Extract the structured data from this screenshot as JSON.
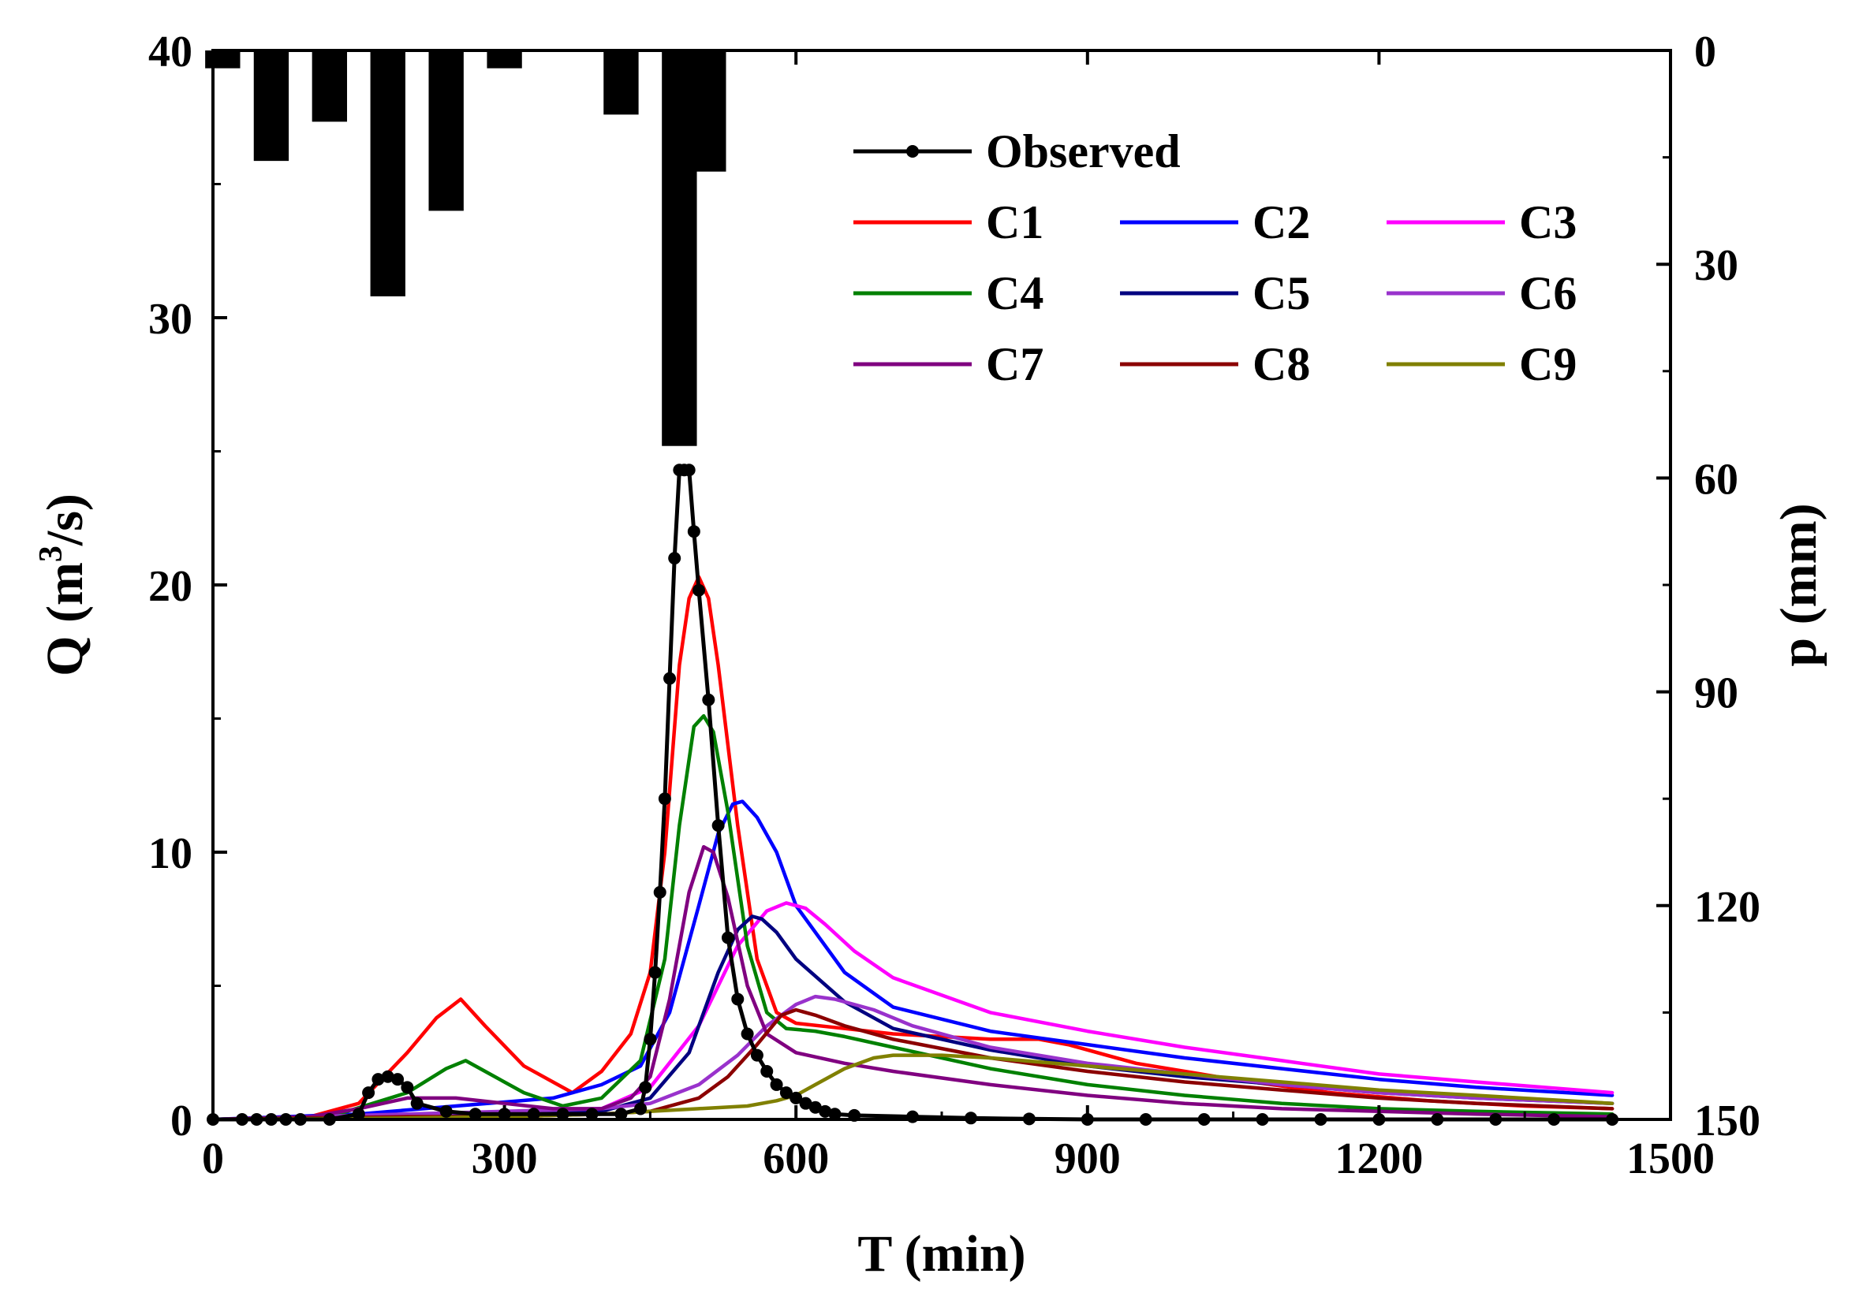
{
  "chart_data": {
    "type": "line",
    "title": "",
    "xlabel": "T (min)",
    "ylabel_left": "Q (m3/s)",
    "ylabel_left_parts": {
      "base": "Q (m",
      "sup": "3",
      "tail": "/s)"
    },
    "ylabel_right": "p (mm)",
    "xlim": [
      0,
      1500
    ],
    "ylim_left": [
      0,
      40
    ],
    "ylim_right": [
      0,
      150
    ],
    "right_axis_inverted": true,
    "x_ticks": [
      0,
      300,
      600,
      900,
      1200,
      1500
    ],
    "x_tick_labels": [
      "0",
      "300",
      "600",
      "900",
      "1200",
      "1500"
    ],
    "y_left_ticks": [
      0,
      10,
      20,
      30,
      40
    ],
    "y_left_tick_labels": [
      "0",
      "10",
      "20",
      "30",
      "40"
    ],
    "y_right_ticks": [
      0,
      30,
      60,
      90,
      120,
      150
    ],
    "y_right_tick_labels": [
      "0",
      "30",
      "60",
      "90",
      "120",
      "150"
    ],
    "legend_position": "top-right",
    "precipitation": {
      "name": "p (mm)",
      "color": "#000000",
      "bar_width_min": 36,
      "bars": [
        {
          "t": 10,
          "p": 2.5
        },
        {
          "t": 60,
          "p": 15.5
        },
        {
          "t": 120,
          "p": 10
        },
        {
          "t": 180,
          "p": 34.5
        },
        {
          "t": 240,
          "p": 22.5
        },
        {
          "t": 300,
          "p": 2.5
        },
        {
          "t": 420,
          "p": 9
        },
        {
          "t": 480,
          "p": 55.5
        },
        {
          "t": 510,
          "p": 17
        }
      ]
    },
    "series": [
      {
        "name": "Observed",
        "color": "#000000",
        "markers": true,
        "x": [
          0,
          30,
          45,
          60,
          75,
          90,
          120,
          150,
          160,
          170,
          180,
          190,
          200,
          210,
          240,
          270,
          300,
          330,
          360,
          390,
          420,
          440,
          445,
          450,
          455,
          460,
          465,
          470,
          475,
          480,
          485,
          490,
          495,
          500,
          510,
          520,
          530,
          540,
          550,
          560,
          570,
          580,
          590,
          600,
          610,
          620,
          630,
          640,
          660,
          720,
          780,
          840,
          900,
          960,
          1020,
          1080,
          1140,
          1200,
          1260,
          1320,
          1380,
          1440
        ],
        "y": [
          0,
          0,
          0,
          0,
          0,
          0,
          0,
          0.2,
          1.0,
          1.5,
          1.6,
          1.5,
          1.2,
          0.6,
          0.3,
          0.2,
          0.2,
          0.2,
          0.2,
          0.2,
          0.2,
          0.4,
          1.2,
          3.0,
          5.5,
          8.5,
          12.0,
          16.5,
          21.0,
          24.3,
          24.3,
          24.3,
          22.0,
          19.8,
          15.7,
          11.0,
          6.8,
          4.5,
          3.2,
          2.4,
          1.8,
          1.3,
          1.0,
          0.8,
          0.6,
          0.45,
          0.3,
          0.2,
          0.15,
          0.1,
          0.05,
          0.02,
          0,
          0,
          0,
          0,
          0,
          0,
          0,
          0,
          0,
          0
        ]
      },
      {
        "name": "C1",
        "color": "#ff0000",
        "x": [
          0,
          100,
          150,
          200,
          230,
          255,
          280,
          320,
          370,
          400,
          430,
          450,
          465,
          480,
          490,
          500,
          510,
          520,
          540,
          560,
          580,
          600,
          650,
          700,
          800,
          850,
          880,
          950,
          1050,
          1150,
          1250,
          1350,
          1440
        ],
        "y": [
          0,
          0.1,
          0.6,
          2.5,
          3.8,
          4.5,
          3.5,
          2.0,
          1.0,
          1.8,
          3.2,
          5.5,
          10.0,
          17.0,
          19.5,
          20.3,
          19.5,
          17.0,
          11.0,
          6.0,
          4.0,
          3.6,
          3.4,
          3.2,
          3.0,
          3.0,
          2.8,
          2.1,
          1.5,
          1.0,
          0.7,
          0.5,
          0.4
        ]
      },
      {
        "name": "C2",
        "color": "#0000ff",
        "x": [
          0,
          150,
          250,
          350,
          400,
          440,
          470,
          500,
          520,
          535,
          545,
          560,
          580,
          600,
          650,
          700,
          800,
          900,
          1000,
          1100,
          1200,
          1300,
          1440
        ],
        "y": [
          0,
          0.2,
          0.5,
          0.8,
          1.3,
          2.0,
          4.0,
          8.0,
          10.7,
          11.8,
          11.9,
          11.3,
          10.0,
          8.0,
          5.5,
          4.2,
          3.3,
          2.8,
          2.3,
          1.9,
          1.5,
          1.2,
          0.9
        ]
      },
      {
        "name": "C3",
        "color": "#ff00ff",
        "x": [
          0,
          200,
          300,
          400,
          450,
          500,
          540,
          570,
          590,
          610,
          630,
          660,
          700,
          800,
          900,
          1000,
          1100,
          1200,
          1300,
          1440
        ],
        "y": [
          0,
          0.1,
          0.2,
          0.4,
          1.2,
          3.5,
          6.5,
          7.8,
          8.1,
          7.9,
          7.3,
          6.3,
          5.3,
          4.0,
          3.3,
          2.7,
          2.2,
          1.7,
          1.4,
          1.0
        ]
      },
      {
        "name": "C4",
        "color": "#008000",
        "x": [
          0,
          120,
          200,
          240,
          260,
          280,
          320,
          360,
          400,
          440,
          465,
          480,
          495,
          505,
          515,
          530,
          550,
          570,
          590,
          620,
          650,
          700,
          800,
          900,
          1000,
          1100,
          1200,
          1300,
          1440
        ],
        "y": [
          0,
          0.1,
          1.0,
          1.9,
          2.2,
          1.8,
          1.0,
          0.5,
          0.8,
          2.2,
          6.0,
          11.0,
          14.7,
          15.1,
          14.5,
          11.5,
          6.5,
          4.0,
          3.4,
          3.3,
          3.1,
          2.7,
          1.9,
          1.3,
          0.9,
          0.6,
          0.4,
          0.3,
          0.2
        ]
      },
      {
        "name": "C5",
        "color": "#000080",
        "x": [
          0,
          200,
          300,
          400,
          450,
          490,
          520,
          540,
          555,
          565,
          580,
          600,
          650,
          700,
          800,
          900,
          1000,
          1100,
          1200,
          1300,
          1440
        ],
        "y": [
          0,
          0.1,
          0.2,
          0.3,
          0.8,
          2.5,
          5.5,
          7.1,
          7.6,
          7.5,
          7.0,
          6.0,
          4.4,
          3.4,
          2.6,
          2.0,
          1.6,
          1.3,
          1.0,
          0.8,
          0.6
        ]
      },
      {
        "name": "C6",
        "color": "#9932cc",
        "x": [
          0,
          200,
          300,
          400,
          450,
          500,
          540,
          570,
          600,
          620,
          640,
          680,
          720,
          800,
          900,
          1000,
          1100,
          1200,
          1300,
          1440
        ],
        "y": [
          0,
          0.2,
          0.3,
          0.4,
          0.6,
          1.3,
          2.4,
          3.5,
          4.3,
          4.6,
          4.5,
          4.1,
          3.5,
          2.7,
          2.1,
          1.7,
          1.3,
          1.0,
          0.8,
          0.6
        ]
      },
      {
        "name": "C7",
        "color": "#800080",
        "x": [
          0,
          100,
          150,
          200,
          250,
          300,
          350,
          400,
          430,
          450,
          470,
          490,
          505,
          515,
          530,
          550,
          570,
          600,
          650,
          700,
          800,
          900,
          1000,
          1100,
          1200,
          1300,
          1440
        ],
        "y": [
          0,
          0.1,
          0.4,
          0.8,
          0.8,
          0.6,
          0.4,
          0.4,
          0.8,
          1.6,
          4.5,
          8.5,
          10.2,
          10.0,
          8.3,
          5.0,
          3.2,
          2.5,
          2.1,
          1.8,
          1.3,
          0.9,
          0.6,
          0.4,
          0.3,
          0.2,
          0.1
        ]
      },
      {
        "name": "C8",
        "color": "#8b0000",
        "x": [
          0,
          200,
          300,
          400,
          450,
          500,
          530,
          560,
          585,
          600,
          620,
          650,
          700,
          800,
          900,
          1000,
          1100,
          1200,
          1300,
          1440
        ],
        "y": [
          0,
          0.1,
          0.1,
          0.2,
          0.3,
          0.8,
          1.6,
          2.8,
          3.9,
          4.1,
          3.9,
          3.5,
          3.0,
          2.3,
          1.8,
          1.4,
          1.1,
          0.8,
          0.6,
          0.4
        ]
      },
      {
        "name": "C9",
        "color": "#808000",
        "x": [
          0,
          200,
          300,
          400,
          450,
          500,
          550,
          580,
          600,
          620,
          650,
          680,
          700,
          750,
          800,
          900,
          1000,
          1100,
          1200,
          1300,
          1440
        ],
        "y": [
          0,
          0.05,
          0.1,
          0.2,
          0.3,
          0.4,
          0.5,
          0.7,
          0.9,
          1.3,
          1.9,
          2.3,
          2.4,
          2.4,
          2.3,
          2.0,
          1.7,
          1.4,
          1.1,
          0.9,
          0.6
        ]
      }
    ]
  }
}
